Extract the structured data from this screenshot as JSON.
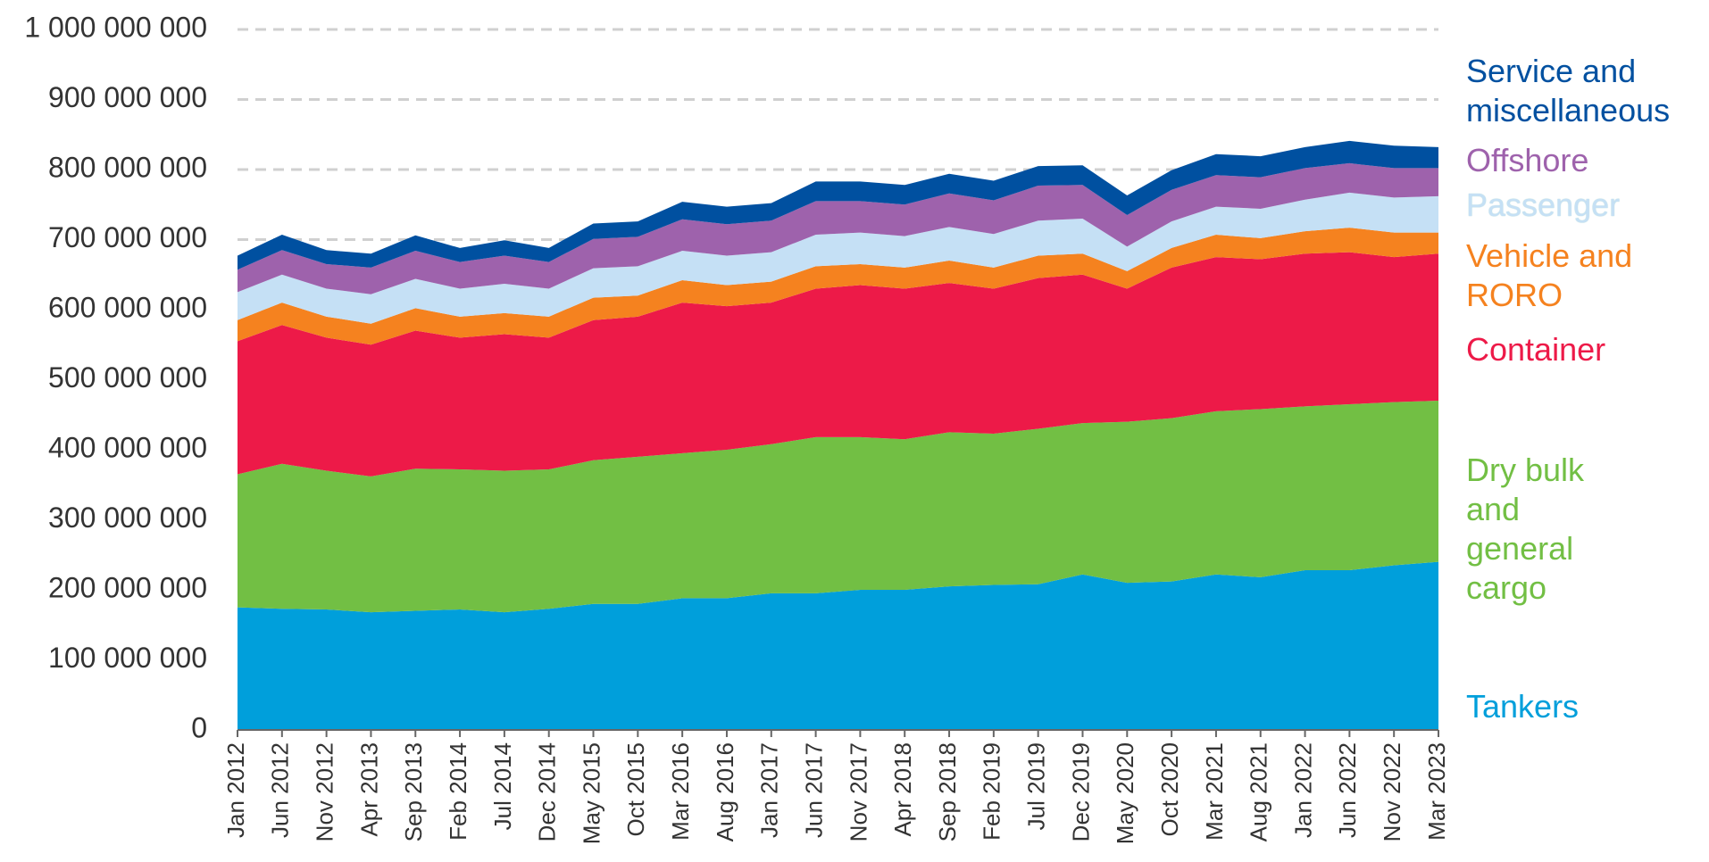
{
  "chart_data": {
    "type": "stacked_area",
    "categories": [
      "Jan 2012",
      "Jun 2012",
      "Nov 2012",
      "Apr 2013",
      "Sep 2013",
      "Feb 2014",
      "Jul 2014",
      "Dec 2014",
      "May 2015",
      "Oct 2015",
      "Mar 2016",
      "Aug 2016",
      "Jan 2017",
      "Jun 2017",
      "Nov 2017",
      "Apr 2018",
      "Sep 2018",
      "Feb 2019",
      "Jul 2019",
      "Dec 2019",
      "May 2020",
      "Oct 2020",
      "Mar 2021",
      "Aug 2021",
      "Jan 2022",
      "Jun 2022",
      "Nov 2022",
      "Mar 2023"
    ],
    "series": [
      {
        "name": "Tankers",
        "color": "#009fdb",
        "values": [
          175000000,
          173000000,
          172000000,
          168000000,
          170000000,
          172000000,
          168000000,
          173000000,
          180000000,
          180000000,
          188000000,
          188000000,
          195000000,
          195000000,
          200000000,
          200000000,
          205000000,
          207000000,
          208000000,
          222000000,
          210000000,
          212000000,
          222000000,
          218000000,
          228000000,
          228000000,
          235000000,
          240000000
        ]
      },
      {
        "name": "Dry bulk and general cargo",
        "color": "#72bf44",
        "values": [
          190000000,
          207000000,
          198000000,
          194000000,
          203000000,
          200000000,
          202000000,
          199000000,
          205000000,
          210000000,
          207000000,
          212000000,
          213000000,
          223000000,
          218000000,
          215000000,
          220000000,
          216000000,
          222000000,
          216000000,
          230000000,
          233000000,
          233000000,
          240000000,
          234000000,
          237000000,
          233000000,
          230000000
        ]
      },
      {
        "name": "Container",
        "color": "#ed1a48",
        "values": [
          190000000,
          198000000,
          190000000,
          188000000,
          197000000,
          188000000,
          195000000,
          188000000,
          200000000,
          200000000,
          215000000,
          205000000,
          202000000,
          212000000,
          217000000,
          215000000,
          213000000,
          207000000,
          215000000,
          212000000,
          190000000,
          215000000,
          220000000,
          214000000,
          218000000,
          217000000,
          207000000,
          210000000
        ]
      },
      {
        "name": "Vehicle and RORO",
        "color": "#f5821f",
        "values": [
          30000000,
          32000000,
          30000000,
          30000000,
          32000000,
          30000000,
          30000000,
          30000000,
          32000000,
          30000000,
          32000000,
          30000000,
          30000000,
          32000000,
          30000000,
          30000000,
          32000000,
          30000000,
          32000000,
          30000000,
          25000000,
          28000000,
          32000000,
          30000000,
          32000000,
          35000000,
          35000000,
          30000000
        ]
      },
      {
        "name": "Passenger",
        "color": "#c5e0f5",
        "values": [
          40000000,
          40000000,
          40000000,
          42000000,
          42000000,
          40000000,
          42000000,
          40000000,
          42000000,
          42000000,
          42000000,
          42000000,
          42000000,
          45000000,
          45000000,
          45000000,
          48000000,
          48000000,
          50000000,
          50000000,
          35000000,
          38000000,
          40000000,
          42000000,
          45000000,
          50000000,
          50000000,
          52000000
        ]
      },
      {
        "name": "Offshore",
        "color": "#9e62ac",
        "values": [
          32000000,
          35000000,
          35000000,
          38000000,
          40000000,
          38000000,
          40000000,
          38000000,
          42000000,
          42000000,
          45000000,
          45000000,
          45000000,
          48000000,
          45000000,
          45000000,
          48000000,
          48000000,
          50000000,
          48000000,
          45000000,
          45000000,
          45000000,
          45000000,
          45000000,
          42000000,
          42000000,
          40000000
        ]
      },
      {
        "name": "Service and miscellaneous",
        "color": "#0050a0",
        "values": [
          20000000,
          22000000,
          20000000,
          20000000,
          22000000,
          20000000,
          22000000,
          20000000,
          22000000,
          22000000,
          25000000,
          25000000,
          25000000,
          28000000,
          28000000,
          28000000,
          28000000,
          28000000,
          28000000,
          28000000,
          28000000,
          28000000,
          30000000,
          30000000,
          30000000,
          32000000,
          32000000,
          30000000
        ]
      }
    ],
    "ylim": [
      0,
      1000000000
    ],
    "yticks": [
      0,
      {
        "value": 100000000,
        "label": "100 000 000"
      },
      {
        "value": 200000000,
        "label": "200 000 000"
      },
      {
        "value": 300000000,
        "label": "300 000 000"
      },
      {
        "value": 400000000,
        "label": "400 000 000"
      },
      {
        "value": 500000000,
        "label": "500 000 000"
      },
      {
        "value": 600000000,
        "label": "600 000 000"
      },
      {
        "value": 700000000,
        "label": "700 000 000"
      },
      {
        "value": 800000000,
        "label": "800 000 000"
      },
      {
        "value": 900000000,
        "label": "900 000 000"
      },
      {
        "value": 1000000000,
        "label": "1 000 000 000"
      }
    ],
    "grid": true,
    "legend": "right"
  }
}
